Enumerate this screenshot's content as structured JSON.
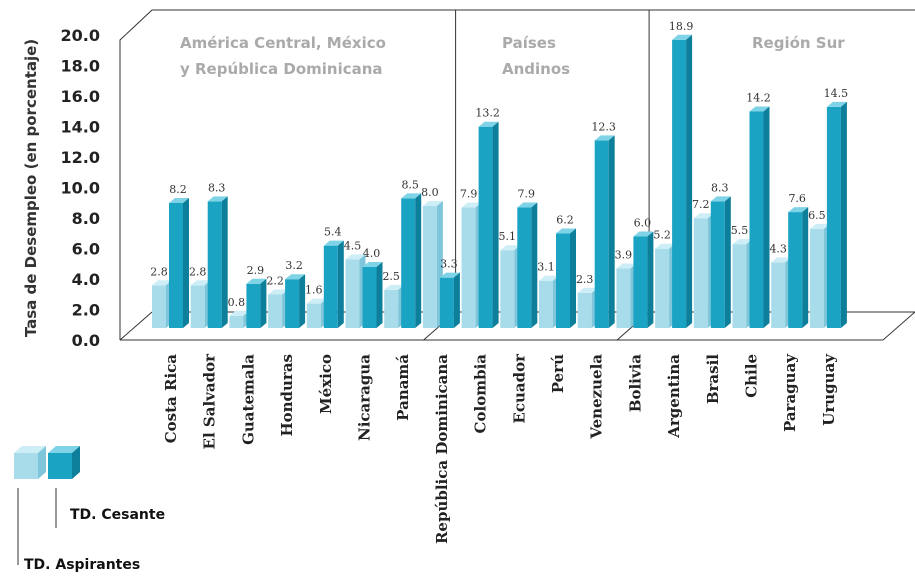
{
  "chart_data": {
    "type": "bar",
    "ylabel": "Tasa de Desempleo (en porcentaje)",
    "ylim": [
      0,
      20
    ],
    "yticks": [
      "0.0",
      "2.0",
      "4.0",
      "6.0",
      "8.0",
      "10.0",
      "12.0",
      "14.0",
      "16.0",
      "18.0",
      "20.0"
    ],
    "categories": [
      "Costa Rica",
      "El Salvador",
      "Guatemala",
      "Honduras",
      "México",
      "Nicaragua",
      "Panamá",
      "República Dominicana",
      "Colombia",
      "Ecuador",
      "Perú",
      "Venezuela",
      "Bolivia",
      "Argentina",
      "Brasil",
      "Chile",
      "Paraguay",
      "Uruguay"
    ],
    "regions": [
      {
        "lines": [
          "América Central, México",
          "y República Dominicana"
        ],
        "start": 0,
        "end": 7
      },
      {
        "lines": [
          "Países",
          "Andinos"
        ],
        "start": 8,
        "end": 12
      },
      {
        "lines": [
          "Región Sur"
        ],
        "start": 13,
        "end": 17
      }
    ],
    "series": [
      {
        "name": "TD. Aspirantes",
        "values": [
          2.8,
          2.8,
          0.8,
          2.2,
          1.6,
          4.5,
          2.5,
          8.0,
          7.9,
          5.1,
          3.1,
          2.3,
          3.9,
          5.2,
          7.2,
          5.5,
          4.3,
          6.5
        ]
      },
      {
        "name": "TD. Cesante",
        "values": [
          8.2,
          8.3,
          2.9,
          3.2,
          5.4,
          4.0,
          8.5,
          3.3,
          13.2,
          7.9,
          6.2,
          12.3,
          6.0,
          18.9,
          8.3,
          14.2,
          7.6,
          14.5
        ]
      }
    ],
    "colors": {
      "aspirantes": "#a9dcea",
      "aspirantes_top": "#cdeef6",
      "aspirantes_side": "#7fc6da",
      "cesante": "#1aa3c3",
      "cesante_top": "#7fd3e6",
      "cesante_side": "#0e7f9b",
      "frame": "#333333"
    },
    "legend": [
      "TD. Cesante",
      "TD. Aspirantes"
    ]
  }
}
